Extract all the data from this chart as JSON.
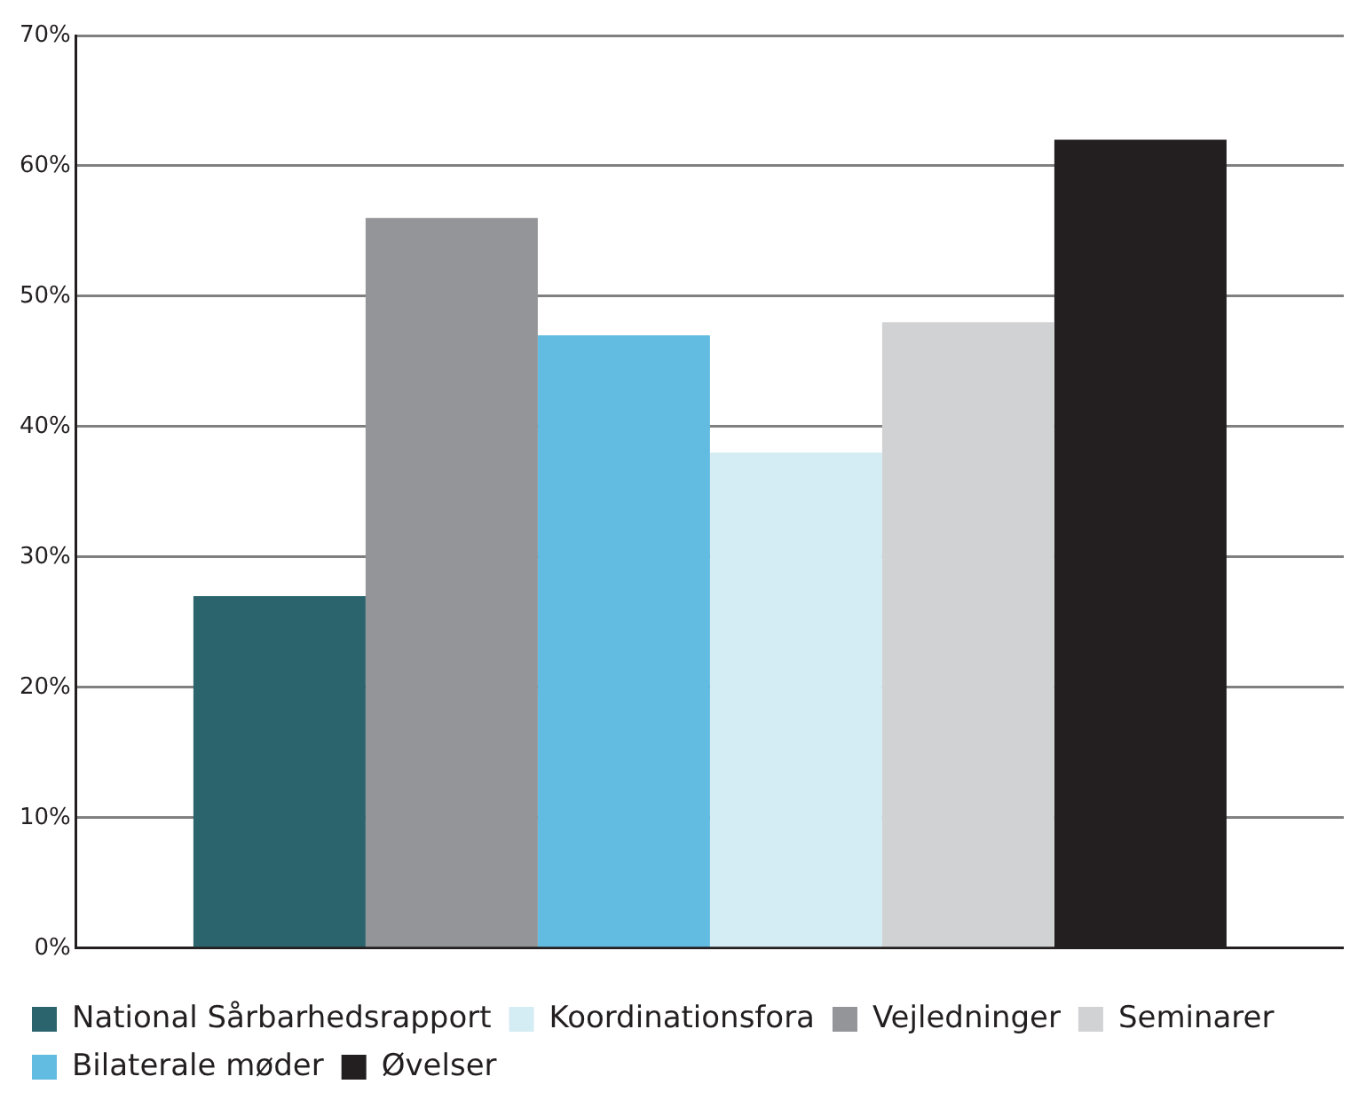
{
  "chart_data": {
    "type": "bar",
    "categories": [
      null
    ],
    "series": [
      {
        "name": "National Sårbarhedsrapport",
        "color": "#2c646e",
        "values": [
          27
        ]
      },
      {
        "name": "Vejledninger",
        "color": "#939598",
        "values": [
          56
        ]
      },
      {
        "name": "Bilaterale møder",
        "color": "#62bbe0",
        "values": [
          47
        ]
      },
      {
        "name": "Koordinationsfora",
        "color": "#d4ecf3",
        "values": [
          38
        ]
      },
      {
        "name": "Seminarer",
        "color": "#d1d2d4",
        "values": [
          48
        ]
      },
      {
        "name": "Øvelser",
        "color": "#231f20",
        "values": [
          62
        ]
      }
    ],
    "ylim": [
      0,
      70
    ],
    "yticks": [
      {
        "value": 0,
        "label": "0%"
      },
      {
        "value": 10,
        "label": "10%"
      },
      {
        "value": 20,
        "label": "20%"
      },
      {
        "value": 30,
        "label": "30%"
      },
      {
        "value": 40,
        "label": "40%"
      },
      {
        "value": 50,
        "label": "50%"
      },
      {
        "value": 60,
        "label": "60%"
      },
      {
        "value": 70,
        "label": "70%"
      }
    ],
    "grid": "y",
    "legend": "bottom"
  }
}
